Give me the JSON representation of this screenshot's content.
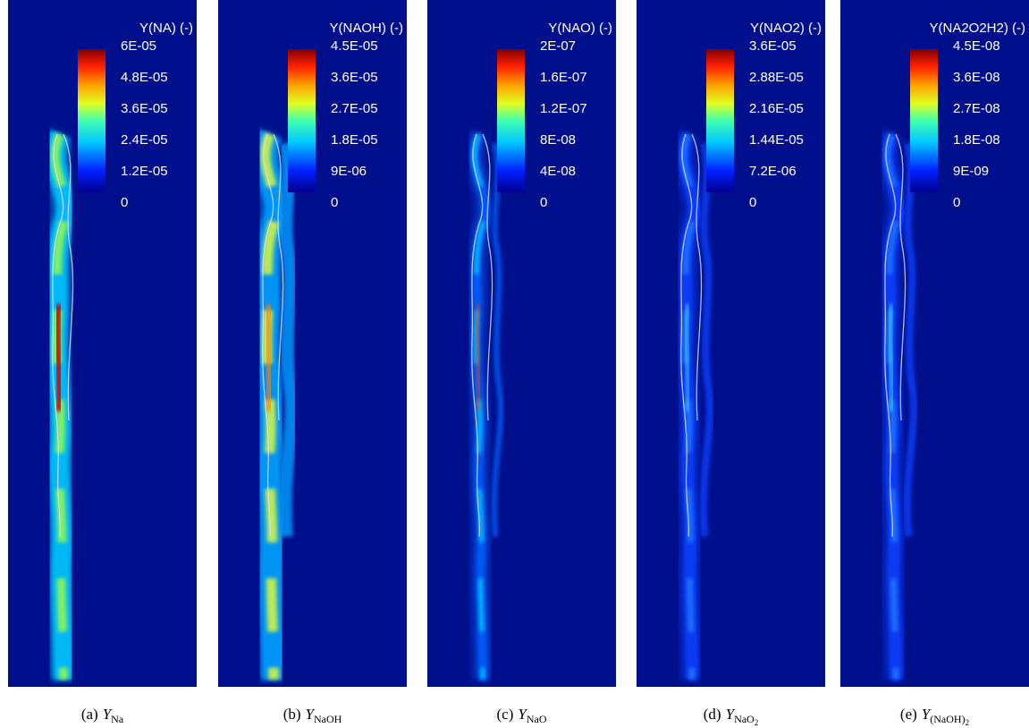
{
  "panels": [
    {
      "title": "Y(NA) (-)",
      "ticks": [
        "6E-05",
        "4.8E-05",
        "3.6E-05",
        "2.4E-05",
        "1.2E-05",
        "0"
      ],
      "caption": {
        "label": "(a)",
        "symbol": "Y",
        "sub": "Na"
      }
    },
    {
      "title": "Y(NAOH) (-)",
      "ticks": [
        "4.5E-05",
        "3.6E-05",
        "2.7E-05",
        "1.8E-05",
        "9E-06",
        "0"
      ],
      "caption": {
        "label": "(b)",
        "symbol": "Y",
        "sub": "NaOH"
      }
    },
    {
      "title": "Y(NAO) (-)",
      "ticks": [
        "2E-07",
        "1.6E-07",
        "1.2E-07",
        "8E-08",
        "4E-08",
        "0"
      ],
      "caption": {
        "label": "(c)",
        "symbol": "Y",
        "sub": "NaO"
      }
    },
    {
      "title": "Y(NAO2) (-)",
      "ticks": [
        "3.6E-05",
        "2.88E-05",
        "2.16E-05",
        "1.44E-05",
        "7.2E-06",
        "0"
      ],
      "caption": {
        "label": "(d)",
        "symbol": "Y",
        "sub": "NaO",
        "subsub": "2"
      }
    },
    {
      "title": "Y(NA2O2H2) (-)",
      "ticks": [
        "4.5E-08",
        "3.6E-08",
        "2.7E-08",
        "1.8E-08",
        "9E-09",
        "0"
      ],
      "caption": {
        "label": "(e)",
        "symbol": "Y",
        "sub": "(NaOH)",
        "subsub": "2"
      }
    }
  ]
}
